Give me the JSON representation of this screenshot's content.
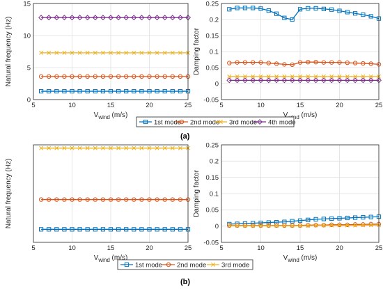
{
  "colors": {
    "s1": "#0072BD",
    "s2": "#D95319",
    "s3": "#EDB120",
    "s4": "#7E2F8E"
  },
  "chart_data": [
    {
      "id": "a-left",
      "type": "line",
      "xlabel_main": "V",
      "xlabel_sub": "wind",
      "xlabel_unit": " (m/s)",
      "ylabel": "Natural frequency (Hz)",
      "xlim": [
        5,
        25
      ],
      "ylim": [
        0,
        15
      ],
      "xticks": [
        5,
        10,
        15,
        20,
        25
      ],
      "yticks": [
        0,
        5,
        10,
        15
      ],
      "x": [
        6,
        7,
        8,
        9,
        10,
        11,
        12,
        13,
        14,
        15,
        16,
        17,
        18,
        19,
        20,
        21,
        22,
        23,
        24,
        25
      ],
      "series": [
        {
          "name": "1st mode",
          "color": "s1",
          "marker": "square",
          "values": [
            1.3,
            1.3,
            1.3,
            1.3,
            1.3,
            1.3,
            1.3,
            1.3,
            1.3,
            1.3,
            1.3,
            1.3,
            1.3,
            1.3,
            1.3,
            1.3,
            1.3,
            1.3,
            1.3,
            1.3
          ]
        },
        {
          "name": "2nd mode",
          "color": "s2",
          "marker": "circle",
          "values": [
            3.6,
            3.6,
            3.6,
            3.6,
            3.6,
            3.6,
            3.6,
            3.6,
            3.6,
            3.6,
            3.6,
            3.6,
            3.6,
            3.6,
            3.6,
            3.6,
            3.6,
            3.6,
            3.6,
            3.6
          ]
        },
        {
          "name": "3rd mode",
          "color": "s3",
          "marker": "x",
          "values": [
            7.3,
            7.3,
            7.3,
            7.3,
            7.3,
            7.3,
            7.3,
            7.3,
            7.3,
            7.3,
            7.3,
            7.3,
            7.3,
            7.3,
            7.3,
            7.3,
            7.3,
            7.3,
            7.3,
            7.3
          ]
        },
        {
          "name": "4th mode",
          "color": "s4",
          "marker": "diamond",
          "values": [
            12.8,
            12.8,
            12.8,
            12.8,
            12.8,
            12.8,
            12.8,
            12.8,
            12.8,
            12.8,
            12.8,
            12.8,
            12.8,
            12.8,
            12.8,
            12.8,
            12.8,
            12.8,
            12.8,
            12.8
          ]
        }
      ]
    },
    {
      "id": "a-right",
      "type": "line",
      "xlabel_main": "V",
      "xlabel_sub": "wind",
      "xlabel_unit": " (m/s)",
      "ylabel": "Damping factor",
      "xlim": [
        5,
        25
      ],
      "ylim": [
        -0.05,
        0.25
      ],
      "xticks": [
        5,
        10,
        15,
        20,
        25
      ],
      "yticks": [
        -0.05,
        0,
        0.05,
        0.1,
        0.15,
        0.2,
        0.25
      ],
      "ytick_labels": [
        "-0.05",
        "0",
        "0.05",
        "0.1",
        "0.15",
        "0.2",
        "0.25"
      ],
      "x": [
        6,
        7,
        8,
        9,
        10,
        11,
        12,
        13,
        14,
        15,
        16,
        17,
        18,
        19,
        20,
        21,
        22,
        23,
        24,
        25
      ],
      "series": [
        {
          "name": "1st mode",
          "color": "s1",
          "marker": "square",
          "values": [
            0.232,
            0.236,
            0.236,
            0.236,
            0.234,
            0.228,
            0.218,
            0.205,
            0.2,
            0.232,
            0.235,
            0.235,
            0.233,
            0.231,
            0.227,
            0.223,
            0.219,
            0.215,
            0.21,
            0.203
          ]
        },
        {
          "name": "2nd mode",
          "color": "s2",
          "marker": "circle",
          "values": [
            0.064,
            0.066,
            0.066,
            0.066,
            0.066,
            0.064,
            0.062,
            0.06,
            0.059,
            0.066,
            0.067,
            0.067,
            0.066,
            0.066,
            0.066,
            0.065,
            0.064,
            0.063,
            0.062,
            0.06
          ]
        },
        {
          "name": "3rd mode",
          "color": "s3",
          "marker": "x",
          "values": [
            0.022,
            0.022,
            0.022,
            0.022,
            0.022,
            0.022,
            0.022,
            0.022,
            0.022,
            0.022,
            0.022,
            0.022,
            0.022,
            0.022,
            0.022,
            0.022,
            0.022,
            0.022,
            0.022,
            0.022
          ]
        },
        {
          "name": "4th mode",
          "color": "s4",
          "marker": "diamond",
          "values": [
            0.01,
            0.01,
            0.01,
            0.01,
            0.01,
            0.01,
            0.01,
            0.01,
            0.01,
            0.01,
            0.01,
            0.01,
            0.01,
            0.01,
            0.01,
            0.01,
            0.01,
            0.01,
            0.01,
            0.01
          ]
        }
      ]
    },
    {
      "id": "b-left",
      "type": "line",
      "xlabel_main": "V",
      "xlabel_sub": "wind",
      "xlabel_unit": " (m/s)",
      "ylabel": "Natural frequency (Hz)",
      "xlim": [
        5,
        25
      ],
      "ylim": [
        0,
        18
      ],
      "xticks": [
        5,
        10,
        15,
        20,
        25
      ],
      "yticks": [],
      "x": [
        6,
        7,
        8,
        9,
        10,
        11,
        12,
        13,
        14,
        15,
        16,
        17,
        18,
        19,
        20,
        21,
        22,
        23,
        24,
        25
      ],
      "series": [
        {
          "name": "1st mode",
          "color": "s1",
          "marker": "square",
          "values": [
            2.4,
            2.4,
            2.4,
            2.4,
            2.4,
            2.4,
            2.4,
            2.4,
            2.4,
            2.4,
            2.4,
            2.4,
            2.4,
            2.4,
            2.4,
            2.4,
            2.4,
            2.4,
            2.4,
            2.4
          ]
        },
        {
          "name": "2nd mode",
          "color": "s2",
          "marker": "circle",
          "values": [
            7.9,
            7.9,
            7.9,
            7.9,
            7.9,
            7.9,
            7.9,
            7.9,
            7.9,
            7.9,
            7.9,
            7.9,
            7.9,
            7.9,
            7.9,
            7.9,
            7.9,
            7.9,
            7.9,
            7.9
          ]
        },
        {
          "name": "3rd mode",
          "color": "s3",
          "marker": "x",
          "values": [
            17.4,
            17.4,
            17.4,
            17.4,
            17.4,
            17.4,
            17.4,
            17.4,
            17.4,
            17.4,
            17.4,
            17.4,
            17.4,
            17.4,
            17.4,
            17.4,
            17.4,
            17.4,
            17.4,
            17.4
          ]
        }
      ]
    },
    {
      "id": "b-right",
      "type": "line",
      "xlabel_main": "V",
      "xlabel_sub": "wind",
      "xlabel_unit": " (m/s)",
      "ylabel": "Damping factor",
      "xlim": [
        5,
        25
      ],
      "ylim": [
        -0.05,
        0.25
      ],
      "xticks": [
        5,
        10,
        15,
        20,
        25
      ],
      "yticks": [
        -0.05,
        0,
        0.05,
        0.1,
        0.15,
        0.2,
        0.25
      ],
      "ytick_labels": [
        "-0.05",
        "0",
        "0.05",
        "0.1",
        "0.15",
        "0.2",
        "0.25"
      ],
      "x": [
        6,
        7,
        8,
        9,
        10,
        11,
        12,
        13,
        14,
        15,
        16,
        17,
        18,
        19,
        20,
        21,
        22,
        23,
        24,
        25
      ],
      "series": [
        {
          "name": "1st mode",
          "color": "s1",
          "marker": "square",
          "values": [
            0.006,
            0.007,
            0.008,
            0.009,
            0.01,
            0.011,
            0.012,
            0.013,
            0.015,
            0.017,
            0.019,
            0.021,
            0.022,
            0.023,
            0.024,
            0.025,
            0.026,
            0.027,
            0.028,
            0.029
          ]
        },
        {
          "name": "2nd mode",
          "color": "s2",
          "marker": "circle",
          "values": [
            0.002,
            0.002,
            0.002,
            0.002,
            0.002,
            0.002,
            0.002,
            0.002,
            0.002,
            0.002,
            0.003,
            0.003,
            0.003,
            0.004,
            0.004,
            0.004,
            0.005,
            0.005,
            0.006,
            0.006
          ]
        },
        {
          "name": "3rd mode",
          "color": "s3",
          "marker": "x",
          "values": [
            0.001,
            0.001,
            0.001,
            0.001,
            0.001,
            0.001,
            0.001,
            0.001,
            0.001,
            0.001,
            0.001,
            0.002,
            0.002,
            0.002,
            0.002,
            0.002,
            0.002,
            0.003,
            0.003,
            0.003
          ]
        }
      ]
    }
  ],
  "legends": [
    {
      "id": "legend-a",
      "items": [
        "1st mode",
        "2nd mode",
        "3rd mode",
        "4th mode"
      ]
    },
    {
      "id": "legend-b",
      "items": [
        "1st mode",
        "2nd mode",
        "3rd mode"
      ]
    }
  ],
  "captions": {
    "a": "(a)",
    "b": "(b)"
  }
}
